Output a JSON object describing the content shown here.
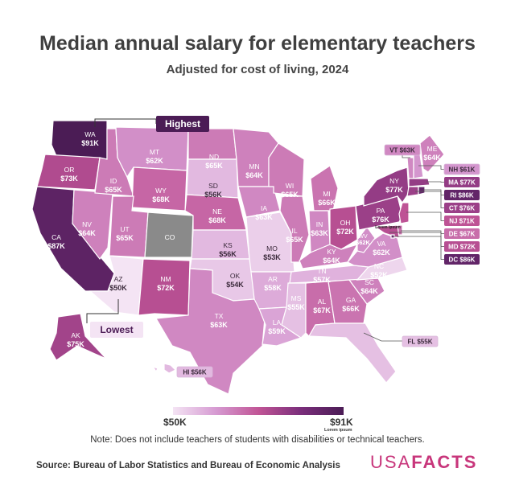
{
  "title": "Median annual salary for elementary teachers",
  "subtitle": "Adjusted for cost of living, 2024",
  "legend": {
    "min_label": "$50K",
    "max_label": "$91K",
    "small_caption": "Lorem ipsum",
    "min_value": 50,
    "max_value": 91
  },
  "callouts": {
    "highest": "Highest",
    "lowest": "Lowest",
    "mid_atlantic_caption": "Lorem ipsum"
  },
  "note": "Note: Does not include teachers of students with disabilities or technical teachers.",
  "source": "Source: Bureau of Labor Statistics and Bureau of Economic Analysis",
  "brand": {
    "usa": "USA",
    "facts": "FACTS"
  },
  "colors": {
    "no_data": "#8a8a8a",
    "scale": [
      "#f4e4f4",
      "#d69bd2",
      "#c15596",
      "#7a2e7b",
      "#4b1c55"
    ],
    "brand": "#c8367b"
  },
  "chart_data": {
    "type": "choropleth",
    "unit": "$K",
    "states": [
      {
        "abbr": "WA",
        "label": "$91K",
        "value": 91
      },
      {
        "abbr": "OR",
        "label": "$73K",
        "value": 73
      },
      {
        "abbr": "CA",
        "label": "$87K",
        "value": 87
      },
      {
        "abbr": "ID",
        "label": "$65K",
        "value": 65
      },
      {
        "abbr": "NV",
        "label": "$64K",
        "value": 64
      },
      {
        "abbr": "MT",
        "label": "$62K",
        "value": 62
      },
      {
        "abbr": "WY",
        "label": "$68K",
        "value": 68
      },
      {
        "abbr": "UT",
        "label": "$65K",
        "value": 65
      },
      {
        "abbr": "AZ",
        "label": "$50K",
        "value": 50
      },
      {
        "abbr": "CO",
        "label": "",
        "value": null
      },
      {
        "abbr": "NM",
        "label": "$72K",
        "value": 72
      },
      {
        "abbr": "ND",
        "label": "$65K",
        "value": 65
      },
      {
        "abbr": "SD",
        "label": "$56K",
        "value": 56
      },
      {
        "abbr": "NE",
        "label": "$68K",
        "value": 68
      },
      {
        "abbr": "KS",
        "label": "$56K",
        "value": 56
      },
      {
        "abbr": "OK",
        "label": "$54K",
        "value": 54
      },
      {
        "abbr": "TX",
        "label": "$63K",
        "value": 63
      },
      {
        "abbr": "MN",
        "label": "$64K",
        "value": 64
      },
      {
        "abbr": "IA",
        "label": "$63K",
        "value": 63
      },
      {
        "abbr": "MO",
        "label": "$53K",
        "value": 53
      },
      {
        "abbr": "AR",
        "label": "$58K",
        "value": 58
      },
      {
        "abbr": "LA",
        "label": "$59K",
        "value": 59
      },
      {
        "abbr": "WI",
        "label": "$65K",
        "value": 65
      },
      {
        "abbr": "IL",
        "label": "$65K",
        "value": 65
      },
      {
        "abbr": "MI",
        "label": "$66K",
        "value": 66
      },
      {
        "abbr": "IN",
        "label": "$63K",
        "value": 63
      },
      {
        "abbr": "OH",
        "label": "$72K",
        "value": 72
      },
      {
        "abbr": "KY",
        "label": "$64K",
        "value": 64
      },
      {
        "abbr": "TN",
        "label": "$57K",
        "value": 57
      },
      {
        "abbr": "MS",
        "label": "$55K",
        "value": 55
      },
      {
        "abbr": "AL",
        "label": "$67K",
        "value": 67
      },
      {
        "abbr": "GA",
        "label": "$66K",
        "value": 66
      },
      {
        "abbr": "FL",
        "label": "$55K",
        "value": 55
      },
      {
        "abbr": "SC",
        "label": "$64K",
        "value": 64
      },
      {
        "abbr": "NC",
        "label": "$52K",
        "value": 52
      },
      {
        "abbr": "VA",
        "label": "$62K",
        "value": 62
      },
      {
        "abbr": "WV",
        "label": "$62K",
        "value": 62
      },
      {
        "abbr": "PA",
        "label": "$76K",
        "value": 76
      },
      {
        "abbr": "NY",
        "label": "$77K",
        "value": 77
      },
      {
        "abbr": "VT",
        "label": "$63K",
        "value": 63
      },
      {
        "abbr": "ME",
        "label": "$64K",
        "value": 64
      },
      {
        "abbr": "NH",
        "label": "$61K",
        "value": 61
      },
      {
        "abbr": "MA",
        "label": "$77K",
        "value": 77
      },
      {
        "abbr": "RI",
        "label": "$86K",
        "value": 86
      },
      {
        "abbr": "CT",
        "label": "$76K",
        "value": 76
      },
      {
        "abbr": "NJ",
        "label": "$71K",
        "value": 71
      },
      {
        "abbr": "DE",
        "label": "$67K",
        "value": 67
      },
      {
        "abbr": "MD",
        "label": "$72K",
        "value": 72
      },
      {
        "abbr": "DC",
        "label": "$86K",
        "value": 86
      },
      {
        "abbr": "AK",
        "label": "$75K",
        "value": 75
      },
      {
        "abbr": "HI",
        "label": "$56K",
        "value": 56
      }
    ]
  }
}
